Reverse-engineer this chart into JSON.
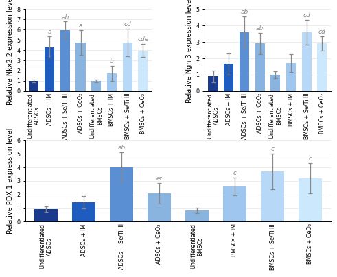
{
  "categories": [
    "Undifferentiated\nADSCs",
    "ADSCs + IM",
    "ADSCs + Se/Ti III",
    "ADSCs + CeO₂",
    "Undifferentiated\nBMSCs",
    "BMSCs + IM",
    "BMSCs + Se/Ti III",
    "BMSCs + CeO₂"
  ],
  "colors": [
    "#1a3a8c",
    "#1f5cbf",
    "#5b8fd4",
    "#8ab4e0",
    "#8ab4e0",
    "#9ec6ee",
    "#b8d8f8",
    "#cce8fc"
  ],
  "nkx_values": [
    1.0,
    4.3,
    5.95,
    4.75,
    1.0,
    1.7,
    4.75,
    3.95
  ],
  "nkx_errors": [
    0.15,
    1.05,
    0.85,
    1.2,
    0.12,
    0.75,
    1.35,
    0.65
  ],
  "nkx_labels": [
    "",
    "a",
    "ab",
    "a",
    "",
    "b",
    "cd",
    "cde"
  ],
  "nkx_ylabel": "Relative Nkx2.2 expression level",
  "nkx_ylim": [
    0,
    8
  ],
  "nkx_yticks": [
    0,
    1,
    2,
    3,
    4,
    5,
    6,
    7,
    8
  ],
  "ngn_values": [
    0.9,
    1.65,
    3.6,
    2.9,
    1.0,
    1.7,
    3.6,
    2.9
  ],
  "ngn_errors": [
    0.35,
    0.65,
    0.95,
    0.65,
    0.2,
    0.55,
    0.75,
    0.45
  ],
  "ngn_labels": [
    "",
    "",
    "ab",
    "ab",
    "",
    "",
    "cd",
    "cd"
  ],
  "ngn_ylabel": "Relative Ngn 3 expression level",
  "ngn_ylim": [
    0,
    5
  ],
  "ngn_yticks": [
    0,
    1,
    2,
    3,
    4,
    5
  ],
  "pdx_values": [
    0.95,
    1.45,
    4.0,
    2.1,
    0.85,
    2.6,
    3.7,
    3.2
  ],
  "pdx_errors": [
    0.2,
    0.45,
    1.1,
    0.75,
    0.2,
    0.65,
    1.3,
    1.1
  ],
  "pdx_labels": [
    "",
    "",
    "ab",
    "ef",
    "",
    "c",
    "c",
    "c"
  ],
  "pdx_ylabel": "Relative PDX-1 expression level",
  "pdx_ylim": [
    0,
    6
  ],
  "pdx_yticks": [
    0,
    1,
    2,
    3,
    4,
    5,
    6
  ],
  "bar_width": 0.62,
  "tick_fontsize": 5.8,
  "ylabel_fontsize": 7.0,
  "annot_fontsize": 6.5,
  "capsize": 2,
  "error_color": "#888888",
  "error_lw": 0.9
}
